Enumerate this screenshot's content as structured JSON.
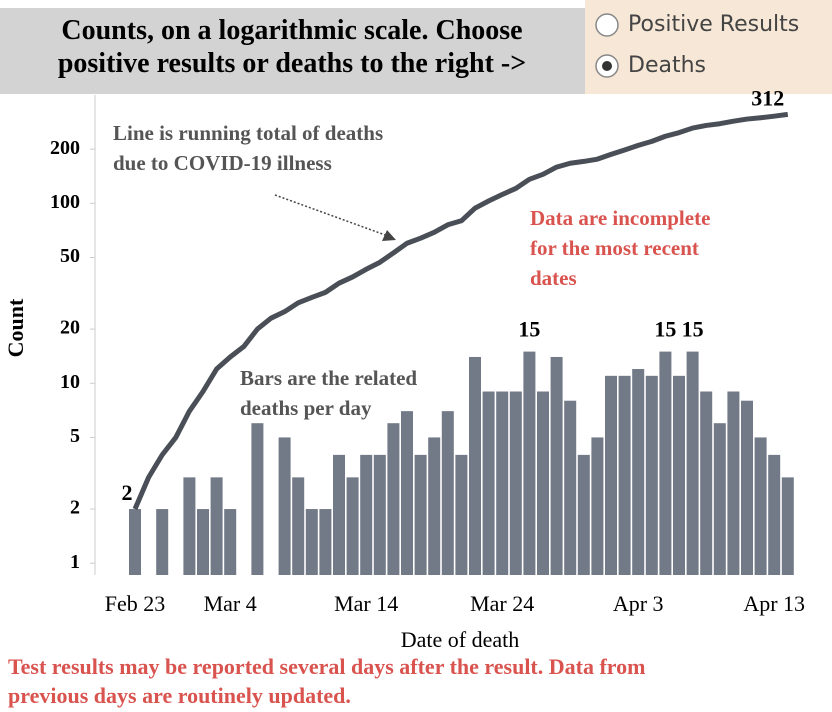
{
  "title": "Counts, on a logarithmic scale. Choose positive results or deaths to the right ->",
  "radio": {
    "options": [
      "Positive Results",
      "Deaths"
    ],
    "selected": 1
  },
  "chart_data": {
    "type": "bar+line",
    "xlabel": "Date of death",
    "ylabel": "Count",
    "log_y": true,
    "categories": [
      "Feb 23",
      null,
      null,
      null,
      null,
      null,
      null,
      "Mar 4",
      null,
      null,
      null,
      null,
      null,
      null,
      null,
      null,
      null,
      "Mar 14",
      null,
      null,
      null,
      null,
      null,
      null,
      null,
      null,
      null,
      "Mar 24",
      null,
      null,
      null,
      null,
      null,
      null,
      null,
      null,
      null,
      "Apr 3",
      null,
      null,
      null,
      null,
      null,
      null,
      null,
      null,
      null,
      "Apr 13",
      null
    ],
    "ylim": [
      0.86,
      400
    ],
    "yticks": [
      1,
      2,
      5,
      10,
      20,
      50,
      100,
      200
    ],
    "series": [
      {
        "type": "bar",
        "color": "#737a87",
        "values": [
          2,
          null,
          2,
          null,
          3,
          2,
          3,
          2,
          null,
          6,
          null,
          5,
          3,
          2,
          2,
          4,
          3,
          4,
          4,
          6,
          7,
          4,
          5,
          7,
          4,
          14,
          9,
          9,
          9,
          15,
          9,
          14,
          8,
          4,
          5,
          11,
          11,
          12,
          11,
          15,
          11,
          15,
          9,
          6,
          9,
          8,
          5,
          4,
          3
        ],
        "value_labels": [
          null,
          null,
          null,
          null,
          null,
          null,
          null,
          null,
          null,
          null,
          null,
          null,
          null,
          null,
          null,
          null,
          null,
          null,
          null,
          null,
          null,
          null,
          null,
          null,
          null,
          null,
          null,
          null,
          null,
          "15",
          null,
          null,
          null,
          null,
          null,
          null,
          null,
          null,
          null,
          "15",
          null,
          "15",
          null,
          null,
          null,
          null,
          null,
          null,
          null
        ]
      },
      {
        "type": "line",
        "color": "#4a4f57",
        "values": [
          2,
          3,
          4,
          5,
          7,
          9,
          12,
          14,
          16,
          20,
          23,
          25,
          28,
          30,
          32,
          36,
          39,
          43,
          47,
          53,
          60,
          64,
          69,
          76,
          80,
          94,
          103,
          112,
          121,
          136,
          145,
          159,
          167,
          171,
          176,
          187,
          198,
          210,
          221,
          236,
          247,
          262,
          271,
          277,
          286,
          294,
          299,
          305,
          312
        ],
        "value_labels": [
          "2",
          null,
          null,
          null,
          null,
          null,
          null,
          null,
          null,
          null,
          null,
          null,
          null,
          null,
          null,
          null,
          null,
          null,
          null,
          null,
          null,
          null,
          null,
          null,
          null,
          null,
          null,
          null,
          null,
          null,
          null,
          null,
          null,
          null,
          null,
          null,
          null,
          null,
          null,
          null,
          null,
          null,
          null,
          null,
          null,
          null,
          null,
          null,
          "312"
        ]
      }
    ],
    "annotations": [
      {
        "lines": [
          "Line is running total of deaths",
          "due to COVID-19 illness"
        ],
        "color": "#555555"
      },
      {
        "lines": [
          "Bars are the related",
          "deaths per day"
        ],
        "color": "#555555"
      },
      {
        "lines": [
          "Data are incomplete",
          "for the most recent",
          "dates"
        ],
        "color": "#d9534f"
      }
    ]
  },
  "footnote": [
    "Test results may be reported several days after the result. Data from",
    "previous days are routinely updated."
  ]
}
